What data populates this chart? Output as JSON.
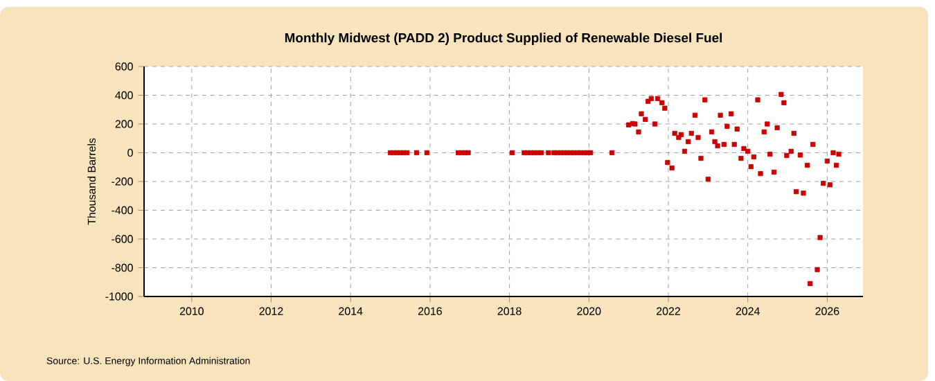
{
  "chart_data": {
    "type": "scatter",
    "title": "Monthly Midwest (PADD 2) Product Supplied of Renewable Diesel Fuel",
    "ylabel": "Thousand Barrels",
    "annotations": [
      "Source: U.S. Energy Information Administration"
    ],
    "xlim": [
      2008.8,
      2026.9
    ],
    "xticks": [
      2010,
      2012,
      2014,
      2016,
      2018,
      2020,
      2022,
      2024,
      2026
    ],
    "ylim": [
      -1000,
      600
    ],
    "yticks": [
      -1000,
      -800,
      -600,
      -400,
      -200,
      0,
      200,
      400,
      600
    ],
    "grid": true,
    "marker": "square",
    "series": [
      {
        "color": "#cc0000",
        "x": [
          2015.0,
          2015.08,
          2015.17,
          2015.25,
          2015.33,
          2015.42,
          2015.66,
          2015.92,
          2016.71,
          2016.79,
          2016.88,
          2016.96,
          2018.07,
          2018.37,
          2018.45,
          2018.54,
          2018.62,
          2018.71,
          2018.8,
          2018.98,
          2019.12,
          2019.2,
          2019.29,
          2019.37,
          2019.45,
          2019.54,
          2019.62,
          2019.71,
          2019.79,
          2019.88,
          2019.96,
          2020.04,
          2020.58,
          2021.0,
          2021.1,
          2021.16,
          2021.25,
          2021.32,
          2021.42,
          2021.49,
          2021.57,
          2021.66,
          2021.73,
          2021.84,
          2021.91,
          2021.98,
          2022.09,
          2022.16,
          2022.26,
          2022.32,
          2022.41,
          2022.5,
          2022.58,
          2022.67,
          2022.75,
          2022.82,
          2022.92,
          2023.0,
          2023.09,
          2023.17,
          2023.24,
          2023.31,
          2023.4,
          2023.48,
          2023.58,
          2023.66,
          2023.73,
          2023.83,
          2023.9,
          2024.0,
          2024.08,
          2024.15,
          2024.25,
          2024.32,
          2024.41,
          2024.49,
          2024.56,
          2024.66,
          2024.74,
          2024.84,
          2024.91,
          2024.98,
          2025.09,
          2025.16,
          2025.22,
          2025.32,
          2025.4,
          2025.5,
          2025.57,
          2025.64,
          2025.75,
          2025.82,
          2025.9,
          2026.0,
          2026.07,
          2026.15,
          2026.23,
          2026.29
        ],
        "values": [
          0,
          0,
          0,
          0,
          0,
          0,
          0,
          0,
          0,
          0,
          0,
          0,
          0,
          0,
          0,
          0,
          0,
          0,
          0,
          0,
          0,
          0,
          0,
          0,
          0,
          0,
          0,
          0,
          0,
          0,
          0,
          0,
          0,
          194,
          203,
          200,
          145,
          271,
          232,
          358,
          377,
          200,
          377,
          348,
          310,
          -68,
          -106,
          135,
          106,
          126,
          10,
          77,
          135,
          261,
          106,
          -39,
          368,
          -184,
          145,
          77,
          48,
          261,
          58,
          184,
          271,
          58,
          165,
          -39,
          29,
          10,
          -97,
          -29,
          368,
          -145,
          145,
          200,
          -10,
          -135,
          174,
          406,
          348,
          -19,
          10,
          135,
          -271,
          -16,
          -281,
          -87,
          -910,
          58,
          -813,
          -590,
          -213,
          -58,
          -223,
          0,
          -87,
          -10
        ]
      }
    ]
  }
}
